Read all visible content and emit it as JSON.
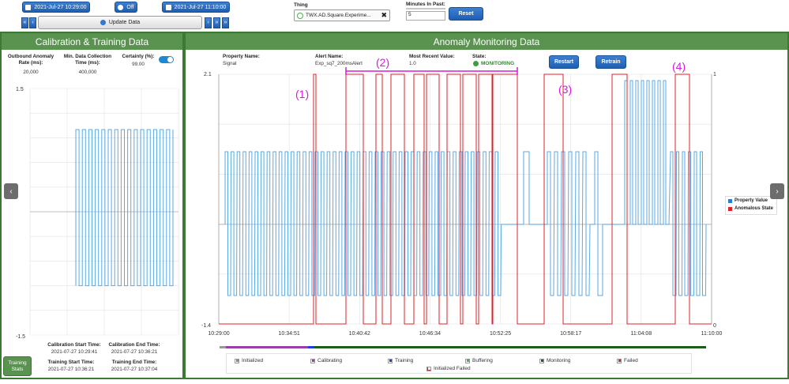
{
  "toolbar": {
    "start_date": "2021-Jul-27 10:29:00",
    "toggle_label": "Off",
    "end_date": "2021-Jul-27 11:10:00",
    "update_label": "Update Data",
    "thing_label": "Thing",
    "thing_value": "TWX.AD.Square.Experime...",
    "minutes_label": "Minutes In Past:",
    "minutes_value": "5",
    "reset_label": "Reset"
  },
  "left_panel": {
    "title": "Calibration & Training Data",
    "outbound_label_1": "Outbound Anomaly",
    "outbound_label_2": "Rate (ms):",
    "outbound_value": "20,000",
    "min_collect_label_1": "Min. Data Collection",
    "min_collect_label_2": "Time (ms):",
    "min_collect_value": "400,000",
    "certainty_label": "Certainty (%):",
    "certainty_value": "99.00",
    "calib_start_label": "Calibration Start Time:",
    "calib_start_value": "2021-07-27 10:29:41",
    "calib_end_label": "Calibration End Time:",
    "calib_end_value": "2021-07-27 10:36:21",
    "train_start_label": "Training Start Time:",
    "train_start_value": "2021-07-27 10:36:21",
    "train_end_label": "Training End Time:",
    "train_end_value": "2021-07-27 10:37:04",
    "training_stats_label_1": "Training",
    "training_stats_label_2": "Stats",
    "y_top": "1.5",
    "y_bottom": "-1.5"
  },
  "right_panel": {
    "title": "Anomaly Monitoring Data",
    "property_name_label": "Property Name:",
    "property_name_value": "Signal",
    "alert_name_label": "Alert Name:",
    "alert_name_value": "Exp_sq7_200msAlert",
    "recent_value_label": "Most Recent Value:",
    "recent_value": "1.0",
    "state_label": "State:",
    "state_value": "MONITORING",
    "restart_label": "Restart",
    "retrain_label": "Retrain"
  },
  "chart_legend": {
    "property_value": "Property Value",
    "anomalous_state": "Anomalous State"
  },
  "state_legend": {
    "initialized": "Initialized",
    "calibrating": "Calibrating",
    "training": "Training",
    "buffering": "Buffering",
    "monitoring": "Monitoring",
    "failed": "Failed",
    "initialized_failed": "Initialized Failed"
  },
  "annotations": [
    "(1)",
    "(2)",
    "(3)",
    "(4)"
  ],
  "colors": {
    "header_green": "#5a9250",
    "signal_blue": "#5aa9e6",
    "anomaly_red": "#e0202a",
    "annotation_magenta": "#d81ad8"
  },
  "chart_data": [
    {
      "type": "line",
      "name": "calibration-training-chart",
      "ylim": [
        -1.5,
        1.5
      ],
      "yticks": [
        "1.5",
        "-1.5"
      ],
      "series": [
        {
          "name": "Property Value",
          "pattern": "square wave",
          "high": 1.0,
          "low": -0.9,
          "periods": 15
        }
      ]
    },
    {
      "type": "line",
      "name": "anomaly-monitoring-chart",
      "x_ticks": [
        "10:29:00",
        "10:34:51",
        "10:40:42",
        "10:46:34",
        "10:52:25",
        "10:58:17",
        "11:04:08",
        "11:10:00"
      ],
      "y_left_ticks": [
        "2.1",
        "-1.4"
      ],
      "y_right_ticks": [
        "1",
        "0"
      ],
      "series": [
        {
          "name": "Property Value",
          "axis": "left"
        },
        {
          "name": "Anomalous State",
          "axis": "right"
        }
      ]
    }
  ]
}
